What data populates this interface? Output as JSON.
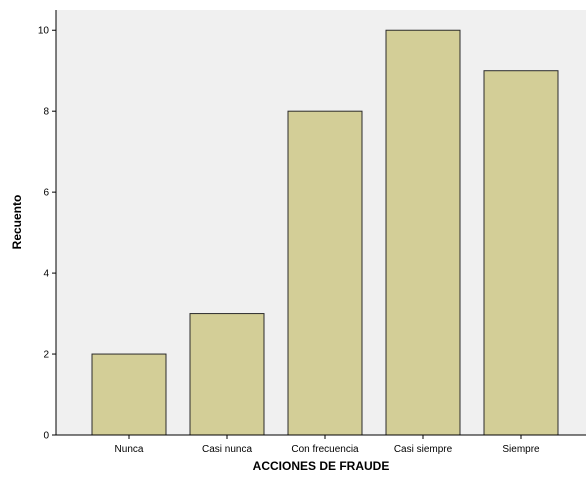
{
  "chart_data": {
    "type": "bar",
    "categories": [
      "Nunca",
      "Casi nunca",
      "Con frecuencia",
      "Casi siempre",
      "Siempre"
    ],
    "values": [
      2,
      3,
      8,
      10,
      9
    ],
    "xlabel": "ACCIONES DE FRAUDE",
    "ylabel": "Recuento",
    "ylim": [
      0,
      10.5
    ],
    "yticks": [
      0,
      2,
      4,
      6,
      8,
      10
    ],
    "grid": false,
    "colors": {
      "bar_fill": "#d3ce97",
      "bar_stroke": "#2b2b2b",
      "plot_background": "#f0f0f0",
      "axis": "#000000"
    }
  }
}
